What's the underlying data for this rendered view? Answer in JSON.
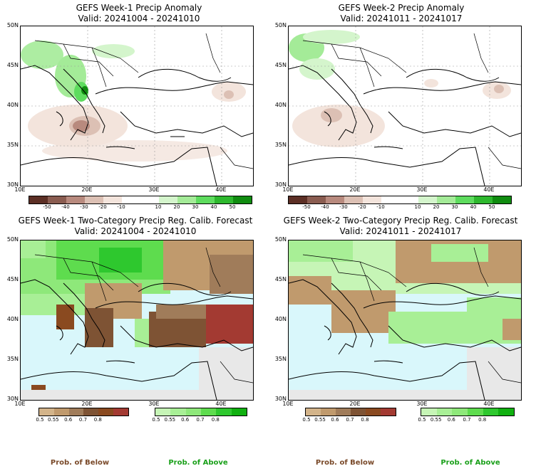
{
  "panels": [
    {
      "id": "w1-anom",
      "title": "GEFS Week-1 Precip Anomaly",
      "valid": "Valid: 20241004 - 20241010"
    },
    {
      "id": "w2-anom",
      "title": "GEFS Week-2 Precip Anomaly",
      "valid": "Valid: 20241011 - 20241017"
    },
    {
      "id": "w1-prob",
      "title": "GEFS Week-1 Two-Category Precip Reg. Calib. Forecast",
      "valid": "Valid: 20241004 - 20241010"
    },
    {
      "id": "w2-prob",
      "title": "GEFS Week-2 Two-Category Precip Reg. Calib. Forecast",
      "valid": "Valid: 20241011 - 20241017"
    }
  ],
  "axes": {
    "lat_labels": [
      "50N",
      "45N",
      "40N",
      "35N",
      "30N"
    ],
    "lon_labels": [
      "10E",
      "20E",
      "30E",
      "40E"
    ]
  },
  "anomaly_colorbar": {
    "colors": [
      "#5c2f25",
      "#8a5c50",
      "#b88a7e",
      "#dcc0b4",
      "#f3e4dc",
      "#ffffff",
      "#ffffff",
      "#d4f5cc",
      "#a4eb98",
      "#5edc5e",
      "#2eb82e",
      "#108c10"
    ],
    "labels": [
      "-50",
      "-40",
      "-30",
      "-20",
      "-10",
      "10",
      "20",
      "30",
      "40",
      "50"
    ]
  },
  "prob_colorbar": {
    "below_colors": [
      "#d3b48a",
      "#c09a6d",
      "#a07c5a",
      "#7e5334",
      "#8a4a20",
      "#a33a32"
    ],
    "below_labels": [
      "0.5",
      "0.55",
      "0.6",
      "0.7",
      "0.8"
    ],
    "above_colors": [
      "#c6f5b6",
      "#a8ef96",
      "#8ee87a",
      "#5edc4e",
      "#2ec82e",
      "#10b010"
    ],
    "above_labels": [
      "0.5",
      "0.55",
      "0.6",
      "0.7",
      "0.8"
    ],
    "below_title": "Prob. of Below",
    "above_title": "Prob. of Above",
    "below_title_color": "#7a4a2a",
    "above_title_color": "#1aa01a"
  }
}
